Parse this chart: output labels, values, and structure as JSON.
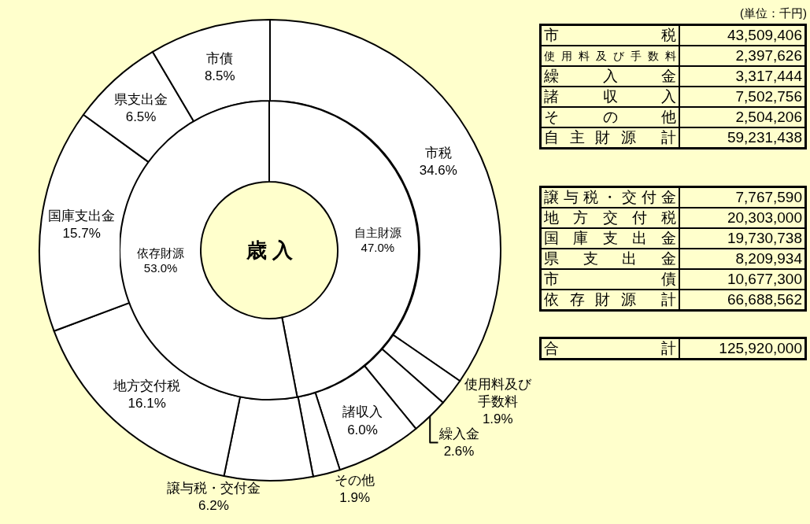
{
  "chart_data": [
    {
      "type": "donut",
      "categories": [
        "市税",
        "使用料及び手数料",
        "繰入金",
        "諸収入",
        "その他",
        "譲与税・交付金",
        "地方交付税",
        "国庫支出金",
        "県支出金",
        "市債"
      ],
      "values": [
        34.6,
        1.9,
        2.6,
        6.0,
        1.9,
        6.2,
        16.1,
        15.7,
        6.5,
        8.5
      ],
      "value_labels": [
        "34.6%",
        "1.9%",
        "2.6%",
        "6.0%",
        "1.9%",
        "6.2%",
        "16.1%",
        "15.7%",
        "6.5%",
        "8.5%"
      ],
      "colors": [
        "#ffffff",
        "#ffffff",
        "#ffffff",
        "#ffffff",
        "#ffffff",
        "#ffffff",
        "#ffffff",
        "#ffffff",
        "#ffffff",
        "#ffffff"
      ]
    },
    {
      "type": "donut",
      "categories": [
        "自主財源",
        "依存財源"
      ],
      "values": [
        47.0,
        53.0
      ],
      "value_labels": [
        "47.0%",
        "53.0%"
      ],
      "colors": [
        "#ffffff",
        "#ffffff"
      ],
      "annotations": [
        "歳 入"
      ]
    },
    {
      "type": "other",
      "annotations": [
        "(単位：千円)"
      ],
      "categories": [
        "市税",
        "使用料及び手数料",
        "繰入金",
        "諸収入",
        "その他",
        "自主財源 計"
      ],
      "value_labels": [
        "43,509,406",
        "2,397,626",
        "3,317,444",
        "7,502,756",
        "2,504,206",
        "59,231,438"
      ]
    },
    {
      "type": "other",
      "categories": [
        "譲与税・交付金",
        "地方交付税",
        "国庫支出金",
        "県支出金",
        "市債",
        "依存財源 計"
      ],
      "value_labels": [
        "7,767,590",
        "20,303,000",
        "19,730,738",
        "8,209,934",
        "10,677,300",
        "66,688,562"
      ]
    },
    {
      "type": "other",
      "categories": [
        "合計"
      ],
      "value_labels": [
        "125,920,000"
      ]
    }
  ]
}
